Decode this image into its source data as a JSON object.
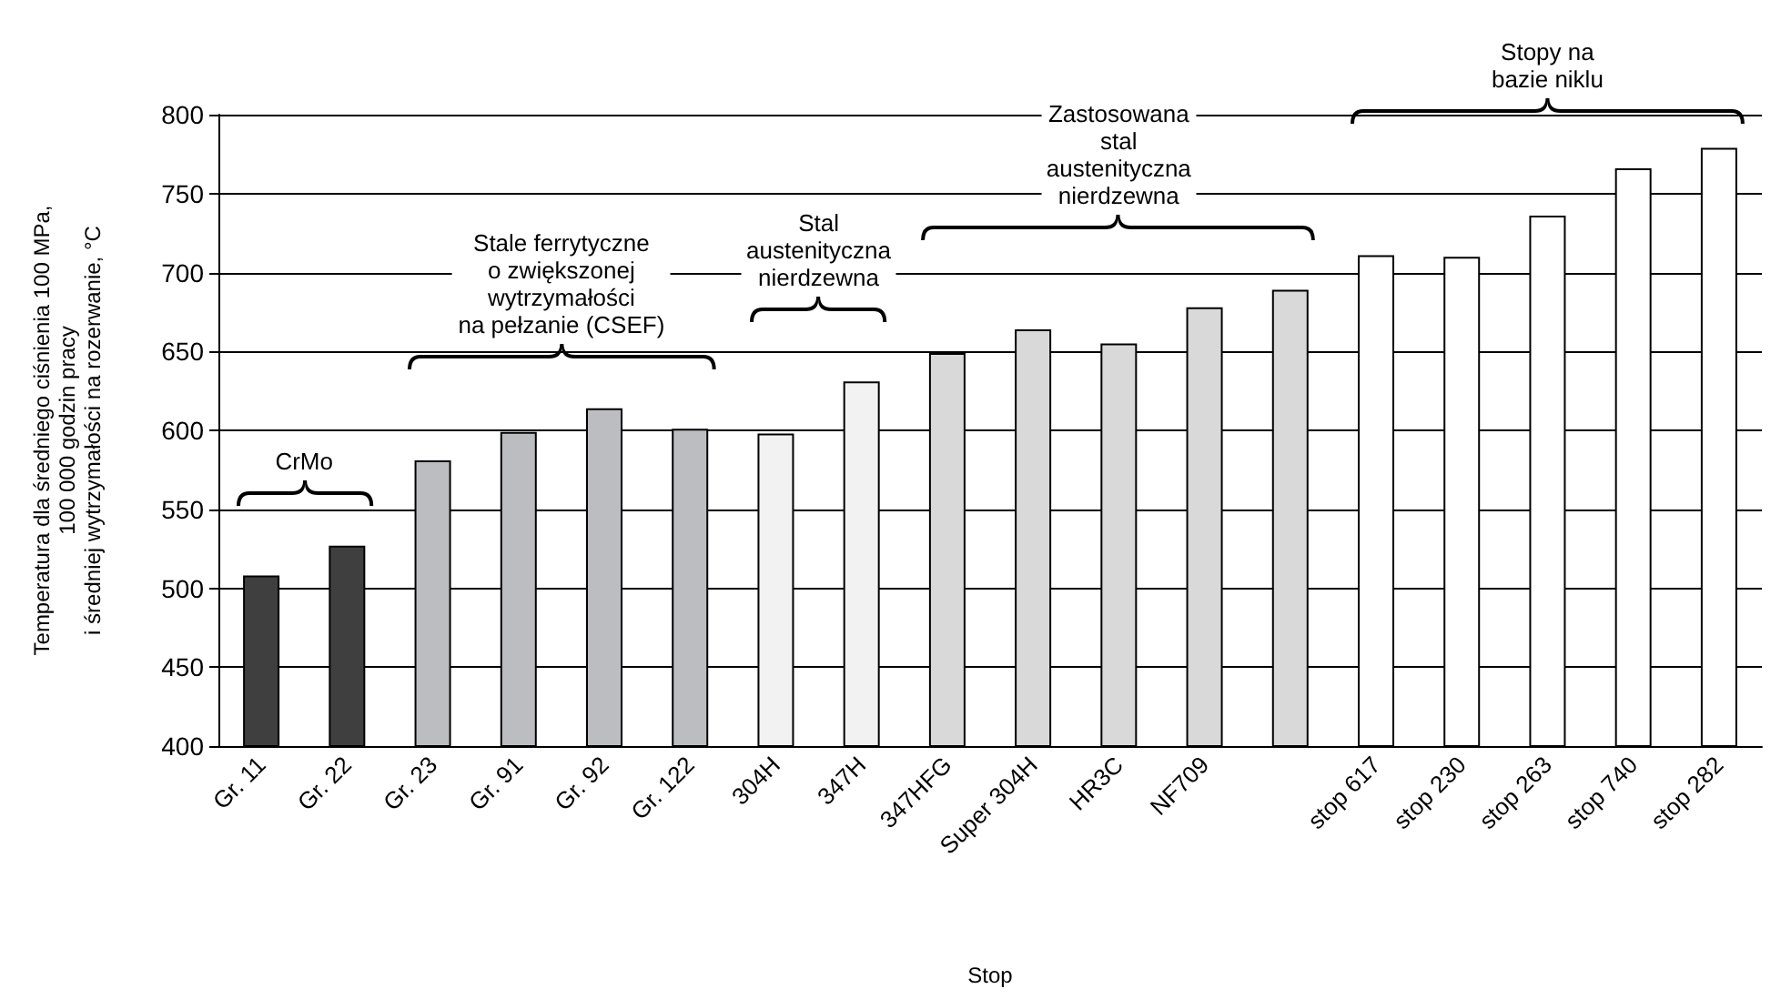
{
  "chart_data": {
    "type": "bar",
    "xlabel": "Stop",
    "ylabel": "Temperatura dla średniego ciśnienia 100 MPa,\n100 000 godzin pracy\ni średniej wytrzymałości na rozerwanie, °C",
    "categories": [
      "Gr. 11",
      "Gr. 22",
      "Gr. 23",
      "Gr. 91",
      "Gr. 92",
      "Gr. 122",
      "304H",
      "347H",
      "347HFG",
      "Super 304H",
      "HR3C",
      "NF709",
      null,
      "stop 617",
      "stop 230",
      "stop 263",
      "stop 740",
      "stop 282"
    ],
    "values": [
      508,
      527,
      581,
      599,
      614,
      601,
      598,
      631,
      649,
      664,
      655,
      678,
      689,
      711,
      710,
      736,
      766,
      779
    ],
    "colors": [
      "#3f3f3f",
      "#3f3f3f",
      "#bcbdc0",
      "#bcbdc0",
      "#bcbdc0",
      "#bcbdc0",
      "#f2f2f2",
      "#f2f2f2",
      "#d9d9d9",
      "#d9d9d9",
      "#d9d9d9",
      "#d9d9d9",
      "#d9d9d9",
      "#ffffff",
      "#ffffff",
      "#ffffff",
      "#ffffff",
      "#ffffff"
    ],
    "ylim": [
      400,
      800
    ],
    "yticks": [
      400,
      450,
      500,
      550,
      600,
      650,
      700,
      750,
      800
    ],
    "grid": "y",
    "annotations": [
      "CrMo",
      "Stale ferrytyczne\no zwiększonej\nwytrzymałości\nna pełzanie (CSEF)",
      "Stal\naustenityczna\nnierdzewna",
      "Zastosowana\nstal\naustenityczna\nnierdzewna",
      "Stopy na\nbazie niklu"
    ]
  }
}
